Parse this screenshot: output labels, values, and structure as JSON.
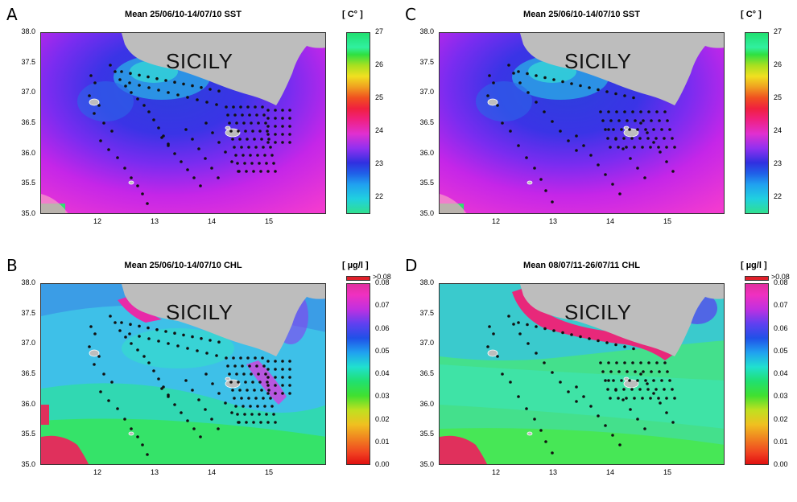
{
  "land_label": "SICILY",
  "axis": {
    "y_ticks": [
      "38.0",
      "37.5",
      "37.0",
      "36.5",
      "36.0",
      "35.5",
      "35.0"
    ],
    "x_ticks": [
      "12",
      "13",
      "14",
      "15"
    ],
    "lon_range": [
      11.0,
      16.0
    ],
    "lat_range": [
      35.0,
      38.0
    ]
  },
  "colors": {
    "land": "#bdbdbd",
    "station_dot": "#111111",
    "over_range": "#e0202a"
  },
  "panels": [
    {
      "letter": "A",
      "title": "Mean 25/06/10-14/07/10 SST",
      "unit": "[ C° ]",
      "variable": "SST",
      "colorbar_ticks": [
        "27",
        "26",
        "25",
        "24",
        "23",
        "22"
      ],
      "colorbar_range": [
        21.5,
        27.0
      ],
      "over_range_label": "",
      "stations": "2010"
    },
    {
      "letter": "C",
      "title": "Mean 25/06/10-14/07/10 SST",
      "unit": "[ C° ]",
      "variable": "SST",
      "colorbar_ticks": [
        "27",
        "26",
        "25",
        "24",
        "23",
        "22"
      ],
      "colorbar_range": [
        21.5,
        27.0
      ],
      "over_range_label": "",
      "stations": "2011"
    },
    {
      "letter": "B",
      "title": "Mean 25/06/10-14/07/10 CHL",
      "unit": "[ µg/l ]",
      "variable": "CHL",
      "colorbar_ticks": [
        "0.08",
        "0.07",
        "0.06",
        "0.05",
        "0.04",
        "0.03",
        "0.02",
        "0.01",
        "0.00"
      ],
      "colorbar_range": [
        0.0,
        0.08
      ],
      "over_range_label": ">0.08",
      "stations": "2010"
    },
    {
      "letter": "D",
      "title": "Mean 08/07/11-26/07/11 CHL",
      "unit": "[ µg/l ]",
      "variable": "CHL",
      "colorbar_ticks": [
        "0.08",
        "0.07",
        "0.06",
        "0.05",
        "0.04",
        "0.03",
        "0.02",
        "0.01",
        "0.00"
      ],
      "colorbar_range": [
        0.0,
        0.08
      ],
      "over_range_label": ">0.08",
      "stations": "2011"
    }
  ]
}
